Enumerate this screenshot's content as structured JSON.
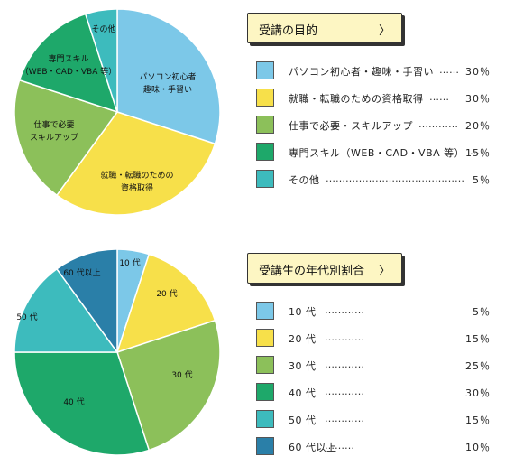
{
  "chart_data": [
    {
      "type": "pie",
      "title": "受講の目的",
      "legend_position": "right",
      "categories": [
        "パソコン初心者・趣味・手習い",
        "就職・転職のための資格取得",
        "仕事で必要・スキルアップ",
        "専門スキル（WEB・CAD・VBA 等）",
        "その他"
      ],
      "values": [
        30,
        30,
        20,
        15,
        5
      ],
      "value_labels": [
        "30％",
        "30％",
        "20％",
        "15％",
        "5％"
      ],
      "slice_labels": [
        [
          "パソコン初心者",
          "趣味・手習い"
        ],
        [
          "就職・転職のための",
          "資格取得"
        ],
        [
          "仕事で必要",
          "スキルアップ"
        ],
        [
          "専門スキル",
          "（WEB・CAD・VBA 等）"
        ],
        [
          "その他"
        ]
      ],
      "colors": [
        "#7cc8e8",
        "#f7e04a",
        "#8cc05a",
        "#1ea86a",
        "#3dbbbd"
      ],
      "legend_leaders": [
        "……",
        "……",
        "…………",
        "…",
        "……………………………………"
      ]
    },
    {
      "type": "pie",
      "title": "受講生の年代別割合",
      "legend_position": "right",
      "categories": [
        "10 代",
        "20 代",
        "30 代",
        "40 代",
        "50 代",
        "60 代以上"
      ],
      "values": [
        5,
        15,
        25,
        30,
        15,
        10
      ],
      "value_labels": [
        "5％",
        "15％",
        "25％",
        "30％",
        "15％",
        "10％"
      ],
      "slice_labels": [
        [
          "10 代"
        ],
        [
          "20 代"
        ],
        [
          "30 代"
        ],
        [
          "40 代"
        ],
        [
          "50 代"
        ],
        [
          "60 代以上"
        ]
      ],
      "colors": [
        "#7cc8e8",
        "#f7e04a",
        "#8cc05a",
        "#1ea86a",
        "#3dbbbd",
        "#2a7fa8"
      ],
      "legend_leaders": [
        "…………",
        "…………",
        "…………",
        "…………",
        "…………",
        "………"
      ]
    }
  ],
  "icons": {
    "chevron": "chevron-right-icon"
  },
  "chevron_glyph": "〉"
}
